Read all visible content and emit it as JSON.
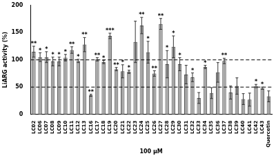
{
  "chart_data": {
    "type": "bar",
    "categories": [
      "LC02",
      "LC06",
      "LC07",
      "LC08",
      "LC09",
      "LC10",
      "LC11",
      "LC12",
      "LC13",
      "LC16",
      "LC17",
      "LC18",
      "LC19",
      "LC20",
      "LC21",
      "LC22",
      "LC23",
      "LC24",
      "LC25",
      "LC26",
      "LC27",
      "LC28",
      "LC29",
      "LC30",
      "LC31",
      "LC32",
      "LC33",
      "LC34",
      "LC35",
      "LC36",
      "LC37",
      "LC38",
      "LC39",
      "LC40",
      "LC41",
      "LC42",
      "LC43",
      "Quercetin"
    ],
    "values": [
      115,
      105,
      105,
      97,
      97,
      104,
      118,
      98,
      128,
      35,
      101,
      96,
      144,
      83,
      79,
      78,
      133,
      163,
      114,
      75,
      166,
      92,
      124,
      92,
      73,
      68,
      30,
      87,
      39,
      77,
      98,
      40,
      52,
      28,
      27,
      52,
      48,
      33
    ],
    "errors": [
      10,
      8,
      10,
      8,
      8,
      6,
      6,
      3,
      13,
      2,
      3,
      3,
      5,
      3,
      12,
      3,
      38,
      15,
      20,
      5,
      10,
      25,
      20,
      12,
      17,
      8,
      10,
      3,
      10,
      18,
      5,
      12,
      15,
      10,
      12,
      3,
      2,
      10
    ],
    "significance": [
      "**",
      "*",
      "*",
      "*",
      "*",
      "*",
      "**",
      "*",
      "**",
      "**",
      "**",
      "*",
      "***",
      "**",
      "*",
      "*",
      null,
      "**",
      "*",
      "**",
      "**",
      "*",
      "*",
      "*",
      null,
      "*",
      null,
      "*",
      null,
      null,
      "**",
      null,
      null,
      null,
      null,
      "*",
      "*",
      null
    ],
    "reference_lines": [
      50,
      100
    ],
    "color": "#a6a6a6",
    "x_label": "100 µM",
    "y_label": "LiARG activity (%)",
    "ylim": [
      0,
      200
    ],
    "yticks": [
      0,
      50,
      100,
      150,
      200
    ],
    "grid": false
  }
}
